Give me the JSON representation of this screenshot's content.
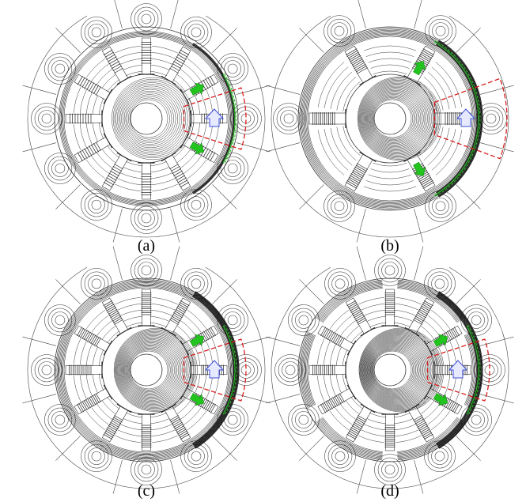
{
  "figure": {
    "panels": [
      {
        "id": "a",
        "caption": "(a)",
        "variant": "a",
        "slots": 12,
        "spacing": 1.0,
        "heavy": "right"
      },
      {
        "id": "b",
        "caption": "(b)",
        "variant": "b",
        "slots": 6,
        "spacing": 0.6,
        "heavy": "right"
      },
      {
        "id": "c",
        "caption": "(c)",
        "variant": "c",
        "slots": 12,
        "spacing": 0.6,
        "heavy": "right"
      },
      {
        "id": "d",
        "caption": "(d)",
        "variant": "d",
        "slots": 12,
        "spacing": 0.5,
        "heavy": "right"
      }
    ],
    "colors": {
      "flux_line": "#222222",
      "boundary": "#555555",
      "highlight_green": "#22c41e",
      "region_red": "#d81e1e",
      "arrow_fill": "#e7e9ff",
      "arrow_stroke": "#3b4fd9"
    }
  }
}
